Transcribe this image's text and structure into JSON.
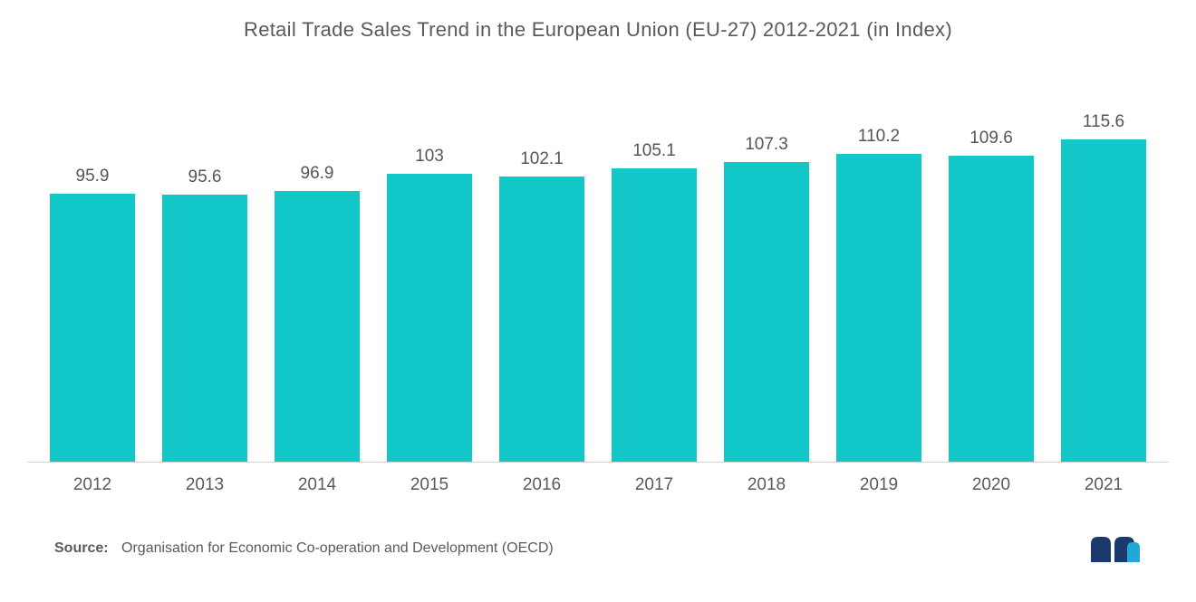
{
  "chart": {
    "type": "bar",
    "title": "Retail Trade Sales Trend in the European Union (EU-27) 2012-2021 (in Index)",
    "categories": [
      "2012",
      "2013",
      "2014",
      "2015",
      "2016",
      "2017",
      "2018",
      "2019",
      "2020",
      "2021"
    ],
    "values": [
      95.9,
      95.6,
      96.9,
      103,
      102.1,
      105.1,
      107.3,
      110.2,
      109.6,
      115.6
    ],
    "value_labels": [
      "95.9",
      "95.6",
      "96.9",
      "103",
      "102.1",
      "105.1",
      "107.3",
      "110.2",
      "109.6",
      "115.6"
    ],
    "bar_color": "#12c7c7",
    "title_color": "#5a5a5a",
    "title_fontsize": 22,
    "label_color": "#555555",
    "axis_label_color": "#5a5a5a",
    "value_fontsize": 19,
    "xaxis_fontsize": 19,
    "axis_line_color": "#d0d0d0",
    "background_color": "#ffffff",
    "bar_width_ratio": 0.76,
    "y_max": 120,
    "y_min": 0
  },
  "footer": {
    "source_label": "Source:",
    "source_text": "Organisation for Economic Co-operation and Development (OECD)",
    "source_fontsize": 16,
    "source_color": "#5a5a5a"
  },
  "logo": {
    "primary_color": "#1a3a6e",
    "accent_color": "#1fa8d8"
  }
}
